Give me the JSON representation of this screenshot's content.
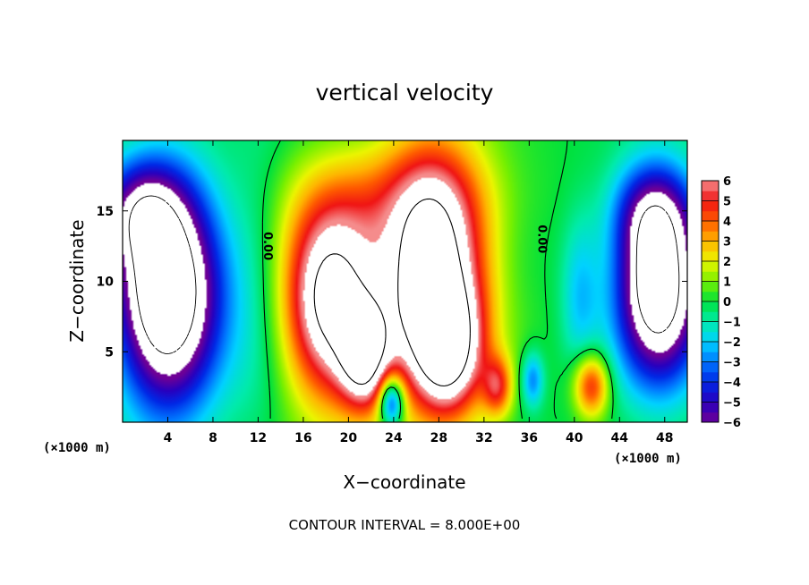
{
  "chart_data": {
    "type": "heatmap",
    "title": "vertical velocity",
    "xlabel": "X−coordinate",
    "ylabel": "Z−coordinate",
    "x_unit_left": "(×1000 m)",
    "x_unit_right": "(×1000 m)",
    "footer": "CONTOUR INTERVAL = 8.000E+00",
    "xlim": [
      0,
      50
    ],
    "ylim": [
      0,
      20
    ],
    "xticks": [
      4,
      8,
      12,
      16,
      20,
      24,
      28,
      32,
      36,
      40,
      44,
      48
    ],
    "yticks": [
      5,
      10,
      15
    ],
    "colorbar": {
      "range": [
        -6,
        6
      ],
      "ticks": [
        6,
        5,
        4,
        3,
        2,
        1,
        0,
        -1,
        -2,
        -3,
        -4,
        -5,
        -6
      ],
      "tick_labels": [
        "6",
        "5",
        "4",
        "3",
        "2",
        "1",
        "0",
        "−1",
        "−2",
        "−3",
        "−4",
        "−5",
        "−6"
      ]
    },
    "contour_labels": [
      {
        "text": "0.00",
        "x": 12.5,
        "z": 12.5
      },
      {
        "text": "0.00",
        "x": 36.8,
        "z": 13.0
      }
    ],
    "features": [
      {
        "kind": "updraft",
        "x": 18.5,
        "z": 8.5,
        "sx": 3.0,
        "sz": 5.0,
        "amp": 9
      },
      {
        "kind": "updraft",
        "x": 21.5,
        "z": 4.5,
        "sx": 1.5,
        "sz": 2.5,
        "amp": 6
      },
      {
        "kind": "updraft",
        "x": 27.5,
        "z": 10.0,
        "sx": 3.2,
        "sz": 6.0,
        "amp": 10
      },
      {
        "kind": "updraft",
        "x": 29.0,
        "z": 5.0,
        "sx": 2.0,
        "sz": 3.0,
        "amp": 5
      },
      {
        "kind": "updraft",
        "x": 33.2,
        "z": 2.5,
        "sx": 0.9,
        "sz": 1.5,
        "amp": 4
      },
      {
        "kind": "updraft",
        "x": 41.5,
        "z": 2.6,
        "sx": 1.1,
        "sz": 1.6,
        "amp": 5
      },
      {
        "kind": "updraft",
        "x": 25.0,
        "z": 16.0,
        "sx": 6.0,
        "sz": 3.0,
        "amp": 2
      },
      {
        "kind": "downdraft",
        "x": 4.0,
        "z": 9.0,
        "sx": 3.2,
        "sz": 5.5,
        "amp": -11
      },
      {
        "kind": "downdraft",
        "x": 1.5,
        "z": 15.0,
        "sx": 2.5,
        "sz": 2.5,
        "amp": -4
      },
      {
        "kind": "downdraft",
        "x": 47.5,
        "z": 9.5,
        "sx": 2.6,
        "sz": 4.5,
        "amp": -10
      },
      {
        "kind": "downdraft",
        "x": 47.0,
        "z": 15.0,
        "sx": 2.5,
        "sz": 2.5,
        "amp": -4
      },
      {
        "kind": "downdraft",
        "x": 23.8,
        "z": 1.5,
        "sx": 0.8,
        "sz": 1.3,
        "amp": -6
      },
      {
        "kind": "downdraft",
        "x": 36.3,
        "z": 3.0,
        "sx": 0.7,
        "sz": 1.4,
        "amp": -3
      },
      {
        "kind": "downdraft",
        "x": 40.5,
        "z": 9.0,
        "sx": 1.2,
        "sz": 4.0,
        "amp": -2
      },
      {
        "kind": "downdraft",
        "x": 12.0,
        "z": 10.0,
        "sx": 2.0,
        "sz": 8.0,
        "amp": -1
      }
    ]
  }
}
